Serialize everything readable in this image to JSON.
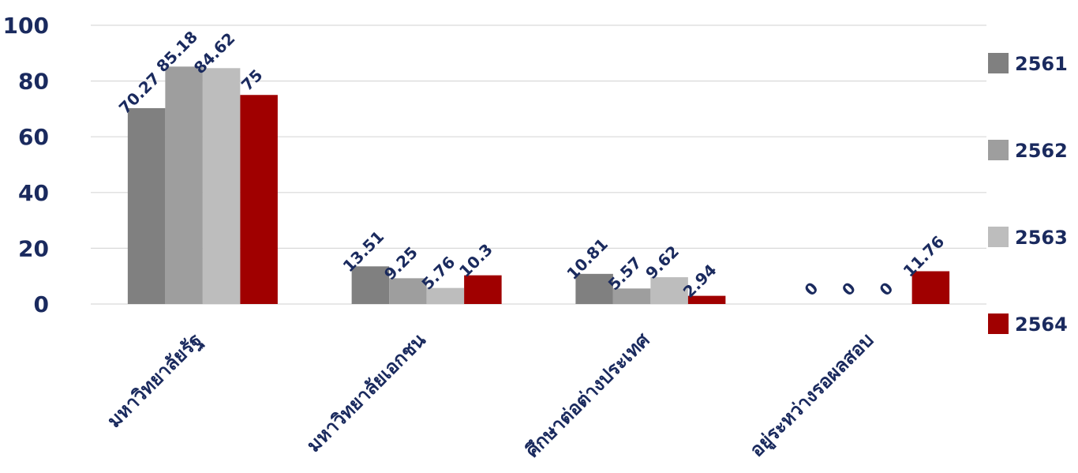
{
  "chart_data": {
    "type": "bar",
    "categories": [
      "มหาวิทยาลัยรัฐ",
      "มหาวิทยาลัยเอกชน",
      "ศึกษาต่อต่างประเทศ",
      "อยู่ระหว่างรอผลสอบ"
    ],
    "series": [
      {
        "name": "2561",
        "color": "#808080",
        "values": [
          70.27,
          13.51,
          10.81,
          0
        ]
      },
      {
        "name": "2562",
        "color": "#9e9e9e",
        "values": [
          85.18,
          9.25,
          5.57,
          0
        ]
      },
      {
        "name": "2563",
        "color": "#bdbdbd",
        "values": [
          84.62,
          5.76,
          9.62,
          0
        ]
      },
      {
        "name": "2564",
        "color": "#a00000",
        "values": [
          75,
          10.3,
          2.94,
          11.76
        ]
      }
    ],
    "ylim": [
      0,
      100
    ],
    "yticks": [
      "0",
      "20",
      "40",
      "60",
      "80",
      "100"
    ],
    "data_labels": [
      [
        "70.27",
        "13.51",
        "10.81",
        "0"
      ],
      [
        "85.18",
        "9.25",
        "5.57",
        "0"
      ],
      [
        "84.62",
        "5.76",
        "9.62",
        "0"
      ],
      [
        "75",
        "10.3",
        "2.94",
        "11.76"
      ]
    ],
    "grid": true,
    "legend_position": "right",
    "text_color": "#1a2a5e",
    "grid_color": "#d9d9d9"
  }
}
